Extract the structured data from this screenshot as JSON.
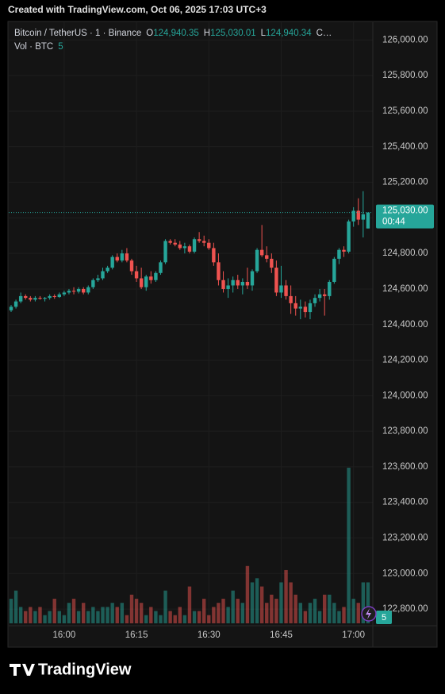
{
  "chart_data": {
    "type": "candlestick",
    "watermark": "Created with TradingView.com, Oct 06, 2025 17:03 UTC+3",
    "title": "Bitcoin / TetherUS · 1 · Binance",
    "legend": [
      {
        "key": "O",
        "value": 124940.35,
        "label": "124,940.35"
      },
      {
        "key": "H",
        "value": 125030.01,
        "label": "125,030.01"
      },
      {
        "key": "L",
        "value": 124940.34,
        "label": "124,940.34"
      }
    ],
    "legend_more": "C…",
    "volume_title": "Vol · BTC",
    "last_price": {
      "value": 125030,
      "label": "125,030.00"
    },
    "countdown": "00:44",
    "brand": "TradingView",
    "up_color": "#26a69a",
    "down_color": "#ef5350",
    "categories": [
      null,
      null,
      null,
      null,
      null,
      null,
      null,
      null,
      null,
      null,
      null,
      "16:00",
      null,
      null,
      null,
      null,
      null,
      null,
      null,
      null,
      null,
      null,
      null,
      null,
      null,
      null,
      "16:15",
      null,
      null,
      null,
      null,
      null,
      null,
      null,
      null,
      null,
      null,
      null,
      null,
      null,
      null,
      "16:30",
      null,
      null,
      null,
      null,
      null,
      null,
      null,
      null,
      null,
      null,
      null,
      null,
      null,
      null,
      "16:45",
      null,
      null,
      null,
      null,
      null,
      null,
      null,
      null,
      null,
      null,
      null,
      null,
      null,
      null,
      "17:00",
      null,
      null,
      null
    ],
    "open": [
      124480,
      124500,
      124530,
      124560,
      124550,
      124540,
      124550,
      124545,
      124550,
      124560,
      124555,
      124570,
      124580,
      124590,
      124585,
      124600,
      124580,
      124610,
      124650,
      124660,
      124700,
      124720,
      124780,
      124760,
      124800,
      124760,
      124700,
      124660,
      124610,
      124670,
      124650,
      124690,
      124750,
      124870,
      124860,
      124850,
      124830,
      124840,
      124810,
      124880,
      124870,
      124860,
      124830,
      124750,
      124650,
      124600,
      124620,
      124650,
      124620,
      124640,
      124620,
      124700,
      124820,
      124790,
      124770,
      124720,
      124580,
      124620,
      124560,
      124520,
      124490,
      124500,
      124470,
      124520,
      124550,
      124570,
      124560,
      124640,
      124770,
      124820,
      124810,
      124980,
      125040,
      124990,
      124940.35
    ],
    "high": [
      124510,
      124540,
      124580,
      124570,
      124560,
      124560,
      124560,
      124555,
      124570,
      124570,
      124580,
      124590,
      124600,
      124610,
      124610,
      124610,
      124620,
      124660,
      124680,
      124720,
      124730,
      124790,
      124800,
      124820,
      124830,
      124770,
      124730,
      124720,
      124680,
      124700,
      124700,
      124760,
      124880,
      124880,
      124880,
      124870,
      124860,
      124850,
      124890,
      124920,
      124900,
      124880,
      124860,
      124800,
      124700,
      124660,
      124670,
      124680,
      124660,
      124720,
      124710,
      124830,
      124960,
      124840,
      124800,
      124760,
      124730,
      124650,
      124620,
      124560,
      124540,
      124530,
      124540,
      124570,
      124600,
      124600,
      124650,
      124780,
      124830,
      124840,
      124990,
      125060,
      125110,
      125150,
      125030.01
    ],
    "low": [
      124470,
      124490,
      124520,
      124540,
      124530,
      124530,
      124540,
      124530,
      124540,
      124545,
      124550,
      124560,
      124570,
      124570,
      124575,
      124570,
      124570,
      124600,
      124640,
      124650,
      124690,
      124710,
      124750,
      124750,
      124750,
      124680,
      124640,
      124600,
      124590,
      124630,
      124640,
      124680,
      124740,
      124850,
      124840,
      124820,
      124800,
      124800,
      124800,
      124860,
      124840,
      124820,
      124730,
      124620,
      124580,
      124550,
      124580,
      124600,
      124570,
      124600,
      124590,
      124690,
      124780,
      124750,
      124690,
      124560,
      124550,
      124540,
      124460,
      124450,
      124430,
      124440,
      124430,
      124500,
      124530,
      124450,
      124540,
      124630,
      124740,
      124780,
      124800,
      124950,
      124960,
      124890,
      124940.34
    ],
    "close": [
      124500,
      124530,
      124560,
      124550,
      124540,
      124550,
      124545,
      124550,
      124560,
      124555,
      124570,
      124580,
      124590,
      124585,
      124600,
      124580,
      124610,
      124650,
      124660,
      124700,
      124720,
      124780,
      124760,
      124800,
      124760,
      124700,
      124660,
      124610,
      124670,
      124650,
      124690,
      124750,
      124870,
      124860,
      124850,
      124830,
      124840,
      124810,
      124880,
      124870,
      124860,
      124830,
      124750,
      124650,
      124600,
      124620,
      124650,
      124620,
      124640,
      124620,
      124700,
      124820,
      124790,
      124770,
      124720,
      124580,
      124620,
      124560,
      124520,
      124490,
      124500,
      124470,
      124520,
      124550,
      124570,
      124560,
      124640,
      124770,
      124820,
      124810,
      124980,
      125040,
      124990,
      125020,
      125030
    ],
    "volume": [
      3,
      4,
      2,
      1.5,
      2,
      1.5,
      2,
      1,
      1.5,
      3,
      1.5,
      1,
      2.5,
      3,
      1.5,
      2.5,
      1.5,
      2,
      1.5,
      2,
      2,
      2.5,
      2,
      2.5,
      1,
      3.5,
      3,
      2.5,
      1,
      2,
      1.5,
      1,
      4,
      1.5,
      1,
      2,
      1,
      4.5,
      1.5,
      1.5,
      3,
      1,
      2,
      2.5,
      3,
      2,
      4,
      3,
      2.5,
      7,
      5,
      5.5,
      4.5,
      2.5,
      3.5,
      3,
      5,
      6.5,
      5,
      3.5,
      2.5,
      1.5,
      2.5,
      3,
      1.5,
      3.5,
      3.5,
      2.5,
      1.5,
      2,
      19,
      3,
      2.5,
      5,
      5
    ],
    "ylim": [
      122720,
      126100
    ],
    "volume_ylim": [
      0,
      73.4
    ],
    "yticks": [
      {
        "value": 122800,
        "label": "122,800.00"
      },
      {
        "value": 123000,
        "label": "123,000.00"
      },
      {
        "value": 123200,
        "label": "123,200.00"
      },
      {
        "value": 123400,
        "label": "123,400.00"
      },
      {
        "value": 123600,
        "label": "123,600.00"
      },
      {
        "value": 123800,
        "label": "123,800.00"
      },
      {
        "value": 124000,
        "label": "124,000.00"
      },
      {
        "value": 124200,
        "label": "124,200.00"
      },
      {
        "value": 124400,
        "label": "124,400.00"
      },
      {
        "value": 124600,
        "label": "124,600.00"
      },
      {
        "value": 124800,
        "label": "124,800.00"
      },
      {
        "value": 125000,
        "label": "125,000.00"
      },
      {
        "value": 125200,
        "label": "125,200.00"
      },
      {
        "value": 125400,
        "label": "125,400.00"
      },
      {
        "value": 125600,
        "label": "125,600.00"
      },
      {
        "value": 125800,
        "label": "125,800.00"
      },
      {
        "value": 126000,
        "label": "126,000.00"
      }
    ],
    "grid": true
  }
}
